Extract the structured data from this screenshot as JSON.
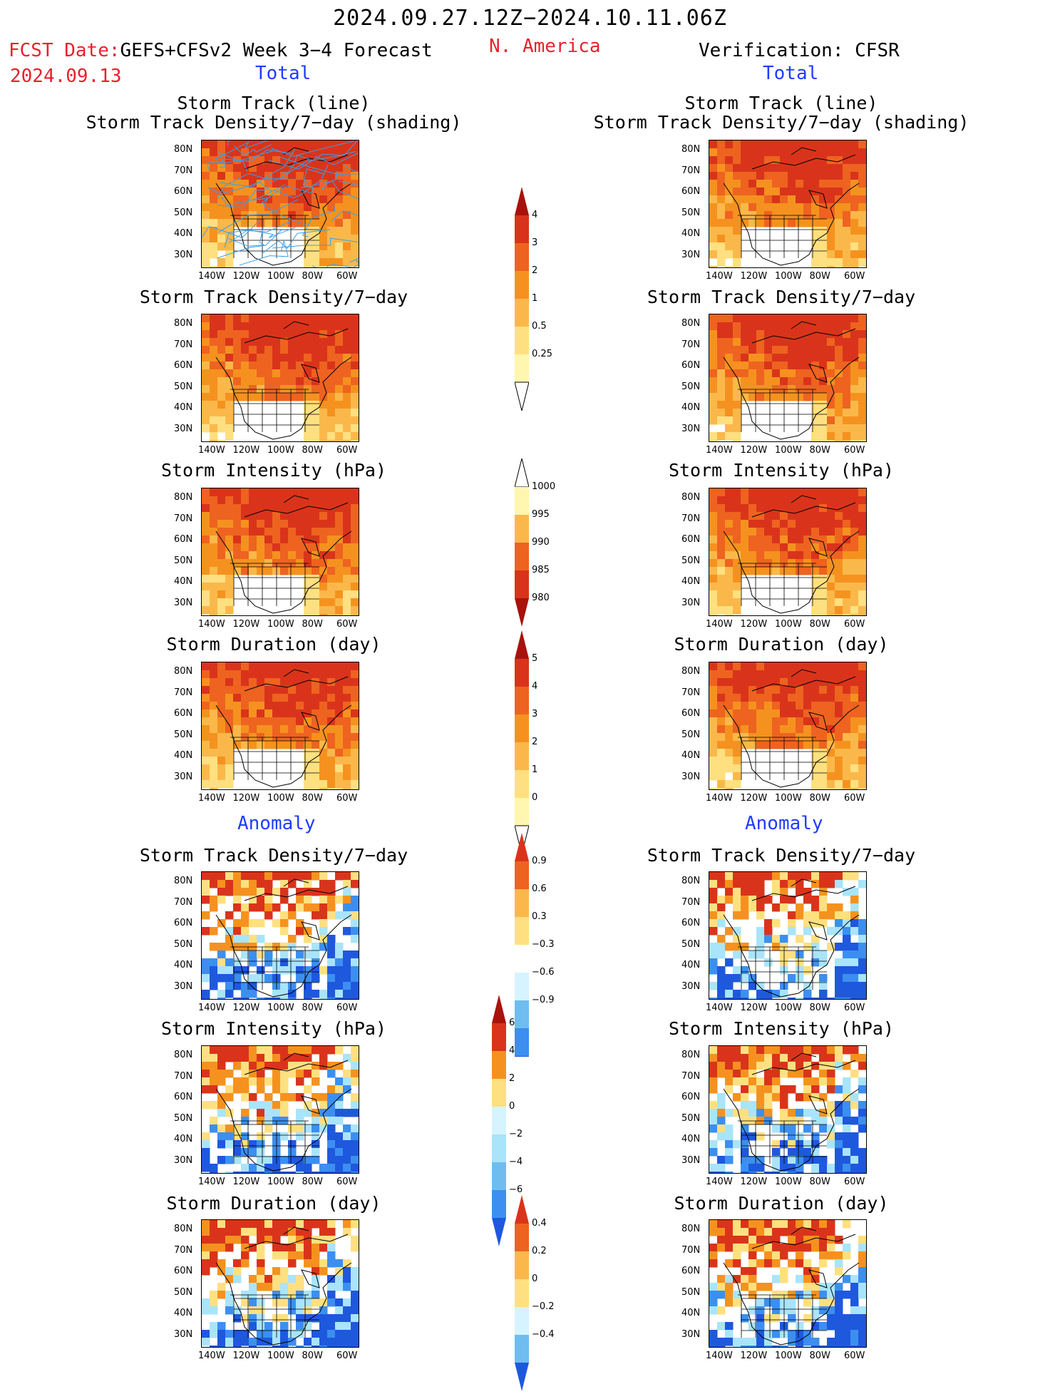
{
  "header": {
    "date_range": "2024.09.27.12Z−2024.10.11.06Z",
    "fcst_label": "FCST Date:",
    "model": "GEFS+CFSv2 Week 3−4 Forecast",
    "fcst_date": "2024.09.13",
    "region": "N. America",
    "verification": "Verification: CFSR"
  },
  "sections": {
    "total": "Total",
    "anomaly": "Anomaly"
  },
  "panel_titles": {
    "track_line": "Storm Track (line)",
    "track_shading": "Storm Track Density/7−day (shading)",
    "density": "Storm Track Density/7−day",
    "intensity": "Storm Intensity (hPa)",
    "duration": "Storm Duration (day)"
  },
  "axes": {
    "lat_labels": [
      "80N",
      "70N",
      "60N",
      "50N",
      "40N",
      "30N"
    ],
    "lon_labels": [
      "140W",
      "120W",
      "100W",
      "80W",
      "60W"
    ]
  },
  "colorbars": {
    "density_total": [
      "4",
      "3",
      "2",
      "1",
      "0.5",
      "0.25"
    ],
    "intensity_total": [
      "1000",
      "995",
      "990",
      "985",
      "980"
    ],
    "duration_total": [
      "5",
      "4",
      "3",
      "2",
      "1",
      "0"
    ],
    "density_anom": [
      "0.9",
      "0.6",
      "0.3",
      "−0.3",
      "−0.6",
      "−0.9"
    ],
    "intensity_anom": [
      "6",
      "4",
      "2",
      "0",
      "−2",
      "−4",
      "−6"
    ],
    "duration_anom": [
      "0.4",
      "0.2",
      "0",
      "−0.2",
      "−0.4"
    ]
  },
  "colors": {
    "warm": [
      "#fff6b0",
      "#ffe080",
      "#fbb84a",
      "#f5921f",
      "#ee6320",
      "#d9341b",
      "#a7130c"
    ],
    "cool": [
      "#d6f4ff",
      "#a9e4fa",
      "#6fbdf0",
      "#3c8ff0",
      "#1e58dd"
    ],
    "track_line": "#3aa0e8"
  }
}
